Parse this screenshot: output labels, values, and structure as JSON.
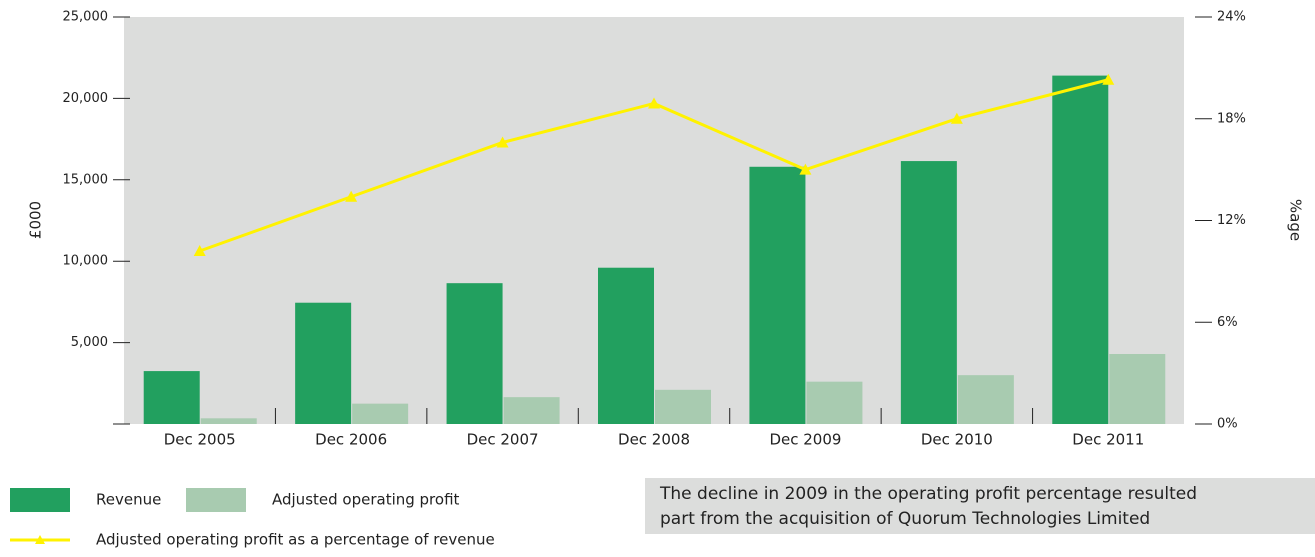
{
  "chart_data": {
    "type": "bar",
    "categories": [
      "Dec 2005",
      "Dec 2006",
      "Dec 2007",
      "Dec 2008",
      "Dec 2009",
      "Dec 2010",
      "Dec 2011"
    ],
    "series": [
      {
        "name": "Revenue",
        "color": "#22a05f",
        "values": [
          3250,
          7450,
          8650,
          9600,
          15800,
          16150,
          21400
        ]
      },
      {
        "name": "Adjusted operating profit",
        "color": "#a8cbb0",
        "values": [
          350,
          1250,
          1650,
          2100,
          2600,
          3000,
          4300
        ]
      },
      {
        "name": "Adjusted operating profit as a percentage of revenue",
        "color": "#fff200",
        "type": "line",
        "axis": "y2",
        "values": [
          10.2,
          13.4,
          16.6,
          18.9,
          15.0,
          18.0,
          20.3
        ]
      }
    ],
    "y_label": "£000",
    "y2_label": "%age",
    "ylim": [
      0,
      25000
    ],
    "yticks": [
      {
        "value": 5000,
        "label": "5,000"
      },
      {
        "value": 10000,
        "label": "10,000"
      },
      {
        "value": 15000,
        "label": "15,000"
      },
      {
        "value": 20000,
        "label": "20,000"
      },
      {
        "value": 25000,
        "label": "25,000"
      }
    ],
    "y2lim": [
      0,
      24
    ],
    "y2ticks": [
      {
        "value": 0,
        "label": "0%"
      },
      {
        "value": 6,
        "label": "6%"
      },
      {
        "value": 12,
        "label": "12%"
      },
      {
        "value": 18,
        "label": "18%"
      },
      {
        "value": 24,
        "label": "24%"
      }
    ],
    "annotation": [
      "The decline in 2009 in the operating profit percentage resulted",
      "part from the acquisition of Quorum Technologies Limited"
    ]
  }
}
